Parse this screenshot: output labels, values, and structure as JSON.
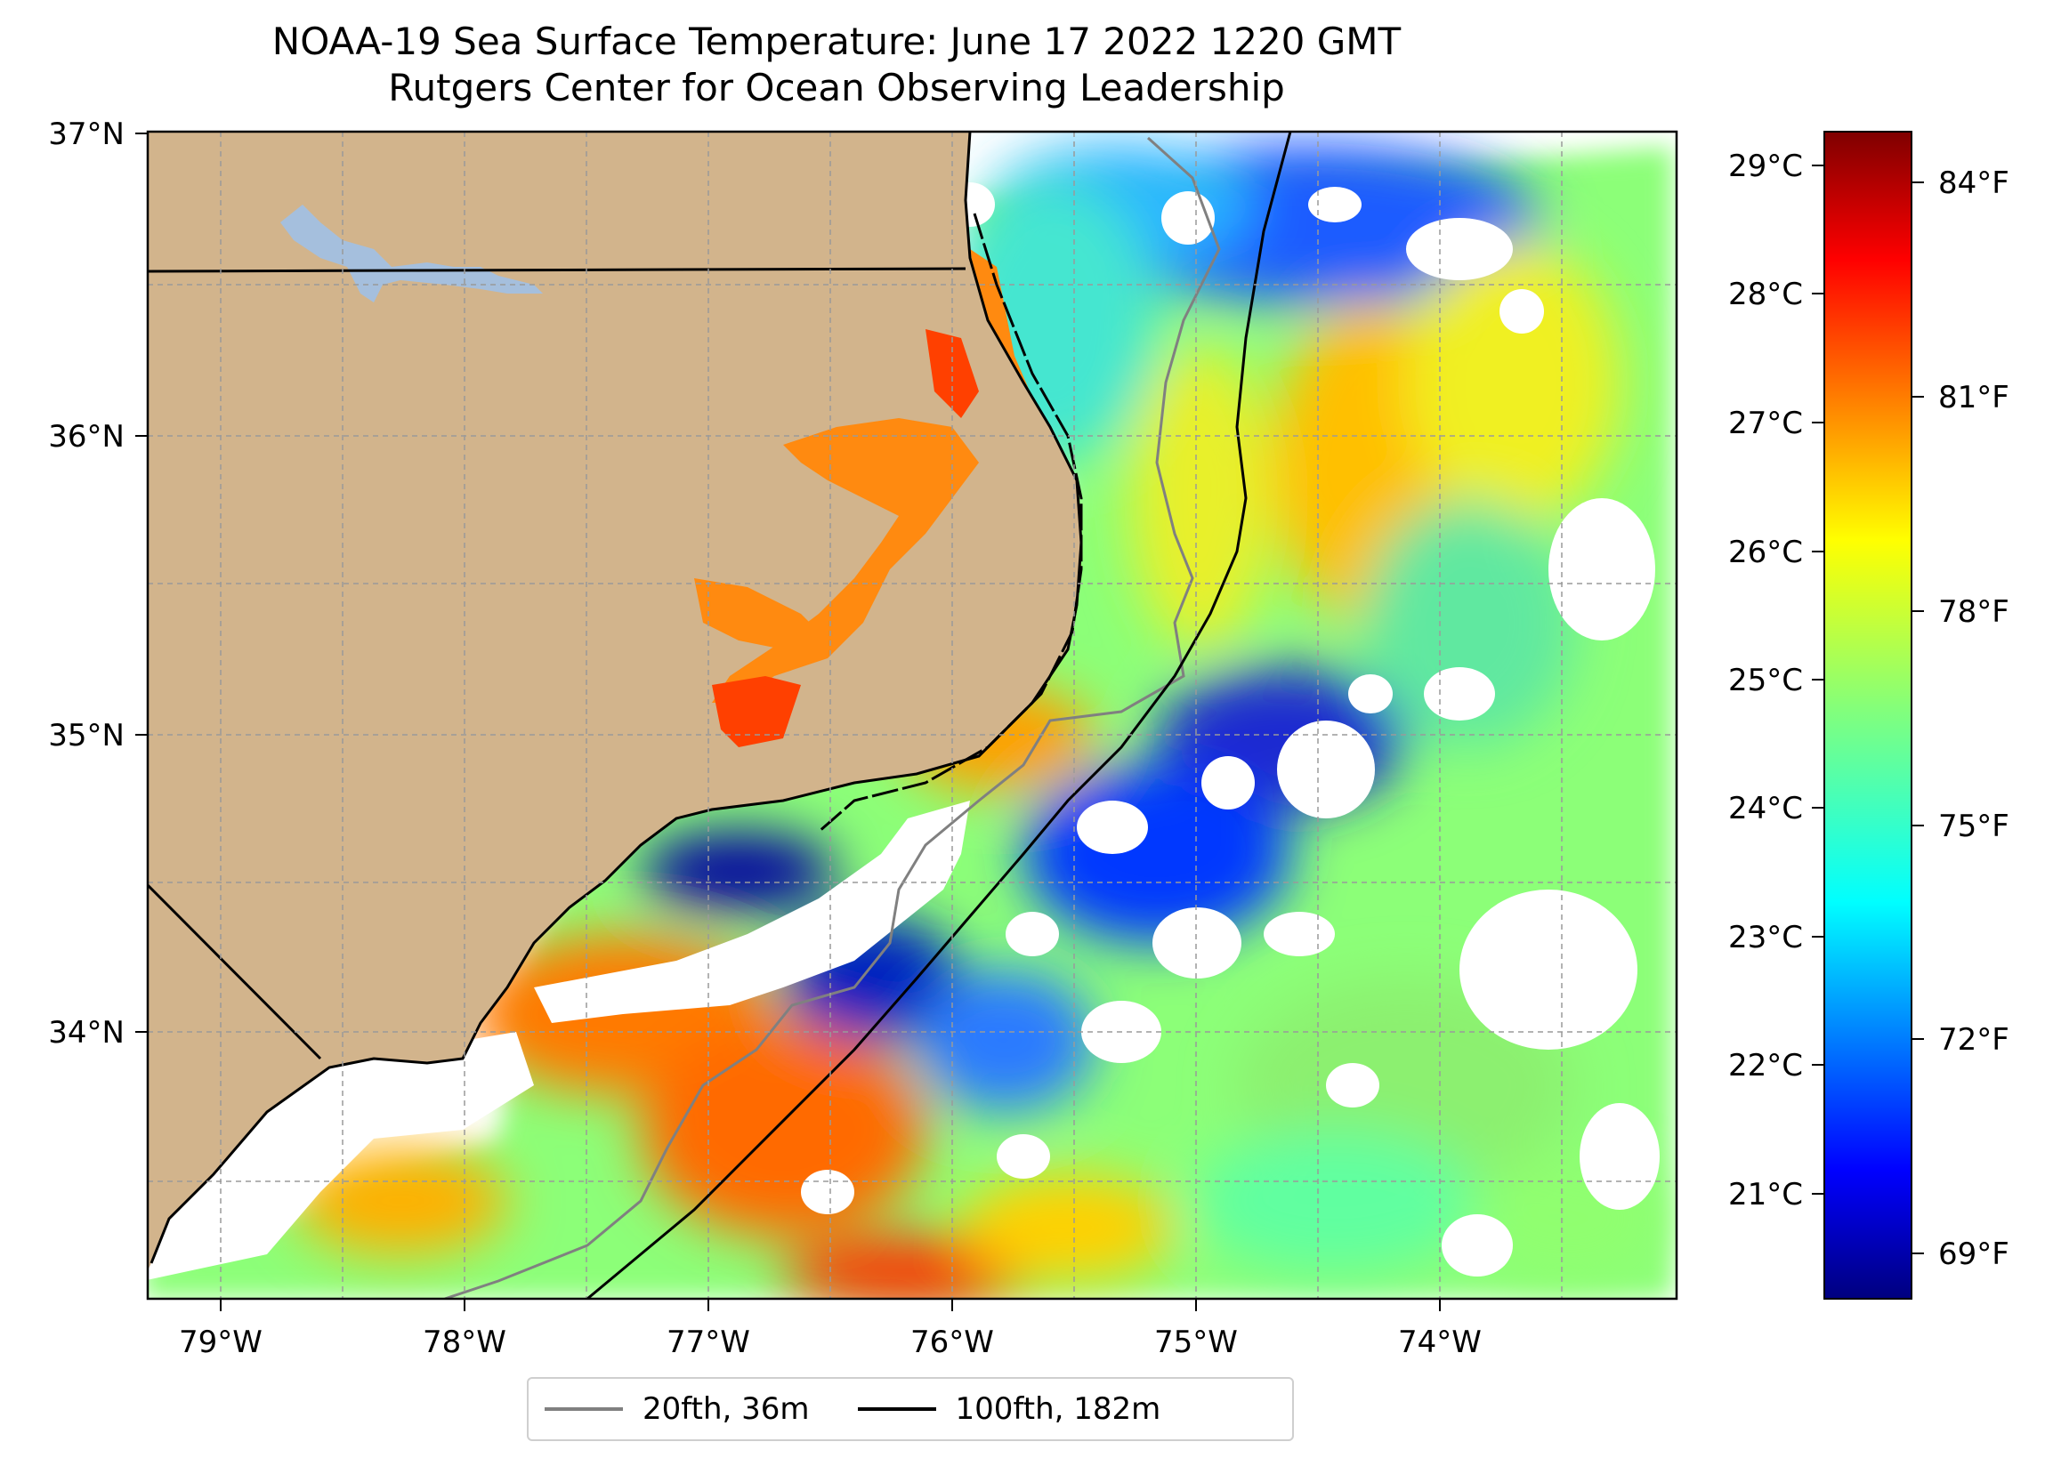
{
  "title": "NOAA-19 Sea Surface Temperature: June 17 2022 1220 GMT",
  "subtitle": "Rutgers Center for Ocean Observing Leadership",
  "map": {
    "lon_range": [
      -79.3,
      -73.0
    ],
    "lat_range": [
      33.1,
      37.0
    ],
    "lon_ticks": [
      "79°W",
      "78°W",
      "77°W",
      "76°W",
      "75°W",
      "74°W"
    ],
    "lat_ticks": [
      "37°N",
      "36°N",
      "35°N",
      "34°N"
    ],
    "land_color": "#d2b48c",
    "lake_color": "#a5bfdd"
  },
  "colorbar": {
    "celsius_ticks": [
      "29°C",
      "28°C",
      "27°C",
      "26°C",
      "25°C",
      "24°C",
      "23°C",
      "22°C",
      "21°C"
    ],
    "fahrenheit_ticks": [
      "84°F",
      "81°F",
      "78°F",
      "75°F",
      "72°F",
      "69°F"
    ],
    "colormap": "jet"
  },
  "legend": {
    "items": [
      {
        "label": "20fth, 36m",
        "color": "#808080"
      },
      {
        "label": "100fth, 182m",
        "color": "#000000"
      }
    ]
  }
}
